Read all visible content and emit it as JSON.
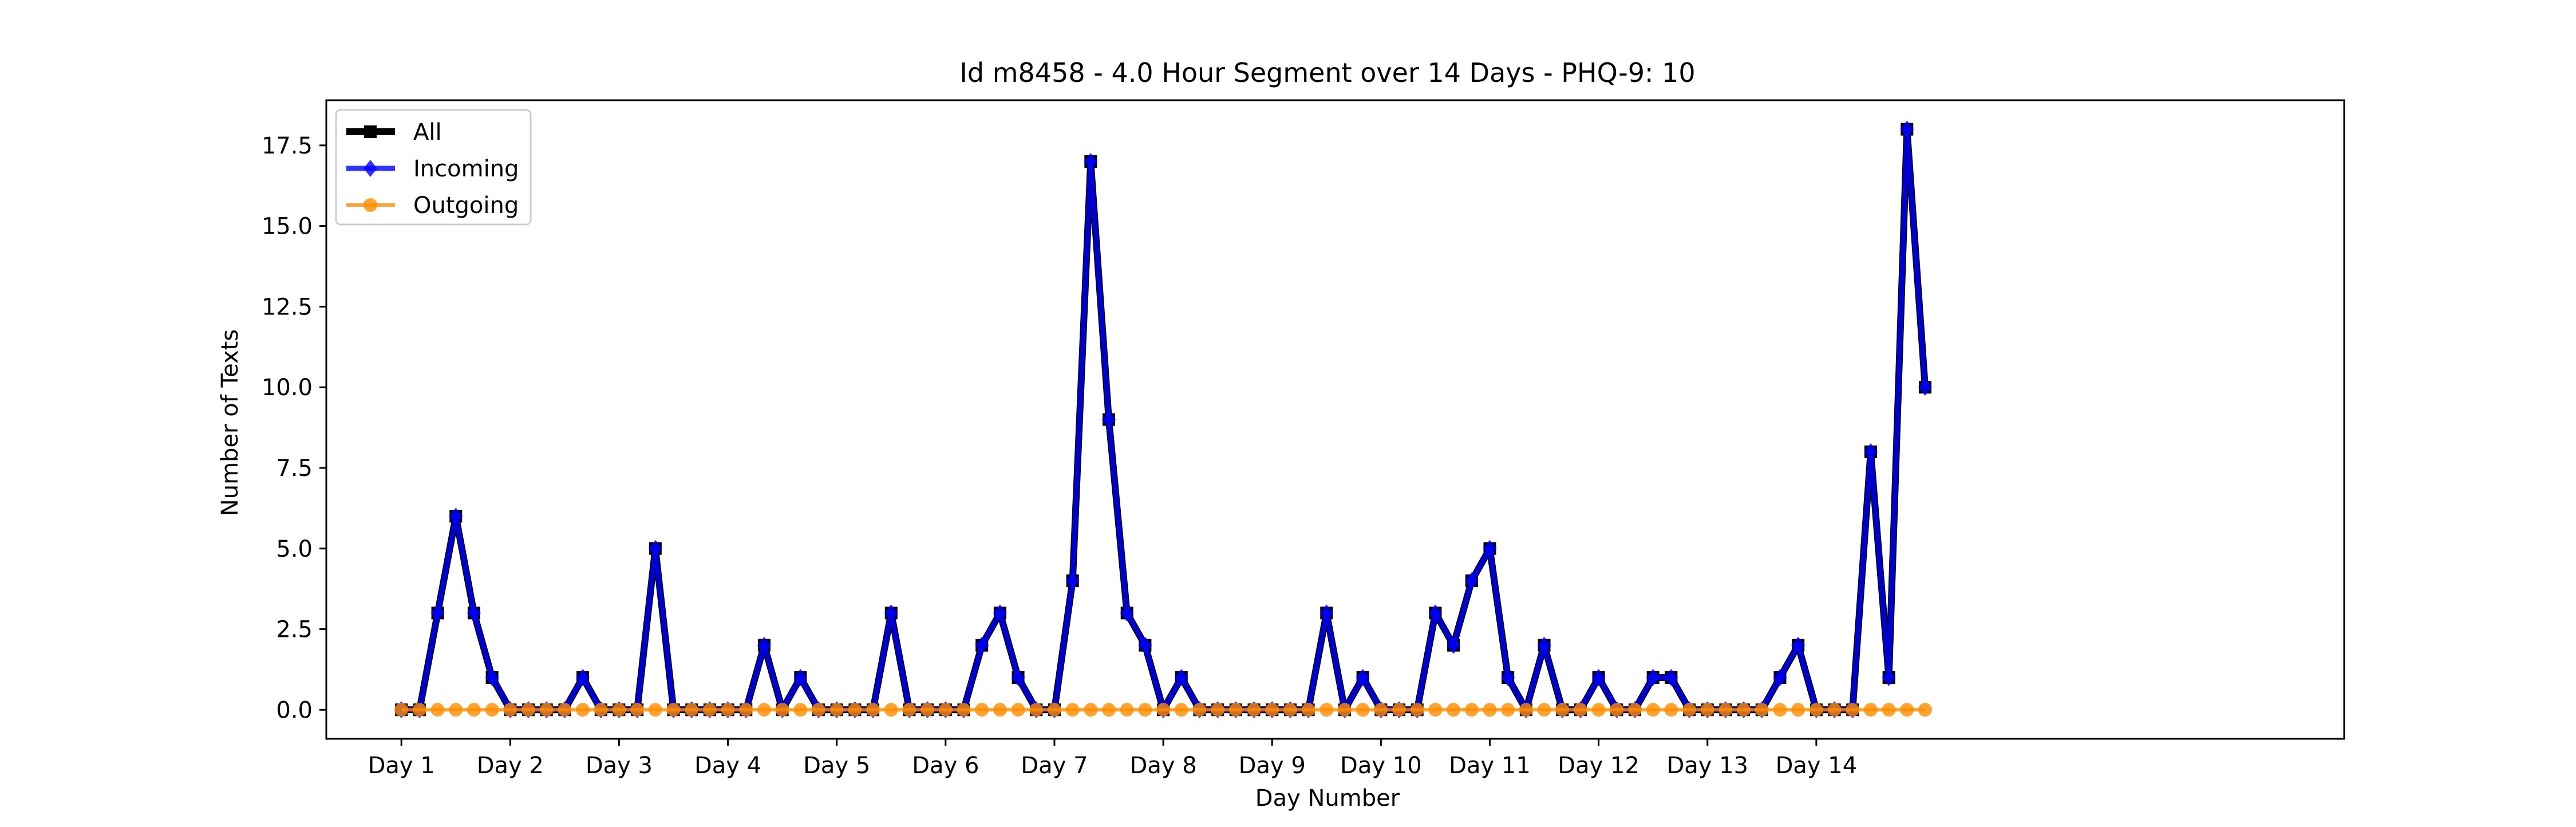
{
  "chart_data": {
    "type": "line",
    "title": "Id m8458 - 4.0 Hour Segment over 14 Days - PHQ-9: 10",
    "xlabel": "Day Number",
    "ylabel": "Number of Texts",
    "xlim": [
      -0.69,
      17.85
    ],
    "ylim": [
      -0.9,
      18.9
    ],
    "x_ticks": [
      {
        "value": 0,
        "label": "Day 1"
      },
      {
        "value": 1,
        "label": "Day 2"
      },
      {
        "value": 2,
        "label": "Day 3"
      },
      {
        "value": 3,
        "label": "Day 4"
      },
      {
        "value": 4,
        "label": "Day 5"
      },
      {
        "value": 5,
        "label": "Day 6"
      },
      {
        "value": 6,
        "label": "Day 7"
      },
      {
        "value": 7,
        "label": "Day 8"
      },
      {
        "value": 8,
        "label": "Day 9"
      },
      {
        "value": 9,
        "label": "Day 10"
      },
      {
        "value": 10,
        "label": "Day 11"
      },
      {
        "value": 11,
        "label": "Day 12"
      },
      {
        "value": 12,
        "label": "Day 13"
      },
      {
        "value": 13,
        "label": "Day 14"
      }
    ],
    "y_ticks": [
      {
        "value": 0,
        "label": "0.0"
      },
      {
        "value": 2.5,
        "label": "2.5"
      },
      {
        "value": 5,
        "label": "5.0"
      },
      {
        "value": 7.5,
        "label": "7.5"
      },
      {
        "value": 10,
        "label": "10.0"
      },
      {
        "value": 12.5,
        "label": "12.5"
      },
      {
        "value": 15,
        "label": "15.0"
      },
      {
        "value": 17.5,
        "label": "17.5"
      }
    ],
    "grid": false,
    "legend_position": "top-left",
    "series": [
      {
        "name": "All",
        "color": "#000000",
        "marker": "square",
        "values": [
          0,
          0,
          3,
          6,
          3,
          1,
          0,
          0,
          0,
          0,
          1,
          0,
          0,
          0,
          5,
          0,
          0,
          0,
          0,
          0,
          2,
          0,
          1,
          0,
          0,
          0,
          0,
          3,
          0,
          0,
          0,
          0,
          2,
          3,
          1,
          0,
          0,
          4,
          17,
          9,
          3,
          2,
          0,
          1,
          0,
          0,
          0,
          0,
          0,
          0,
          0,
          3,
          0,
          1,
          0,
          0,
          0,
          3,
          2,
          4,
          5,
          1,
          0,
          2,
          0,
          0,
          1,
          0,
          0,
          1,
          1,
          0,
          0,
          0,
          0,
          0,
          1,
          2,
          0,
          0,
          0,
          8,
          1,
          18,
          10
        ]
      },
      {
        "name": "Incoming",
        "color": "#0000ff",
        "marker": "diamond",
        "values": [
          0,
          0,
          3,
          6,
          3,
          1,
          0,
          0,
          0,
          0,
          1,
          0,
          0,
          0,
          5,
          0,
          0,
          0,
          0,
          0,
          2,
          0,
          1,
          0,
          0,
          0,
          0,
          3,
          0,
          0,
          0,
          0,
          2,
          3,
          1,
          0,
          0,
          4,
          17,
          9,
          3,
          2,
          0,
          1,
          0,
          0,
          0,
          0,
          0,
          0,
          0,
          3,
          0,
          1,
          0,
          0,
          0,
          3,
          2,
          4,
          5,
          1,
          0,
          2,
          0,
          0,
          1,
          0,
          0,
          1,
          1,
          0,
          0,
          0,
          0,
          0,
          1,
          2,
          0,
          0,
          0,
          8,
          1,
          18,
          10
        ]
      },
      {
        "name": "Outgoing",
        "color": "#ff8c00",
        "marker": "circle",
        "values": [
          0,
          0,
          0,
          0,
          0,
          0,
          0,
          0,
          0,
          0,
          0,
          0,
          0,
          0,
          0,
          0,
          0,
          0,
          0,
          0,
          0,
          0,
          0,
          0,
          0,
          0,
          0,
          0,
          0,
          0,
          0,
          0,
          0,
          0,
          0,
          0,
          0,
          0,
          0,
          0,
          0,
          0,
          0,
          0,
          0,
          0,
          0,
          0,
          0,
          0,
          0,
          0,
          0,
          0,
          0,
          0,
          0,
          0,
          0,
          0,
          0,
          0,
          0,
          0,
          0,
          0,
          0,
          0,
          0,
          0,
          0,
          0,
          0,
          0,
          0,
          0,
          0,
          0,
          0,
          0,
          0,
          0,
          0,
          0,
          0
        ]
      }
    ]
  }
}
